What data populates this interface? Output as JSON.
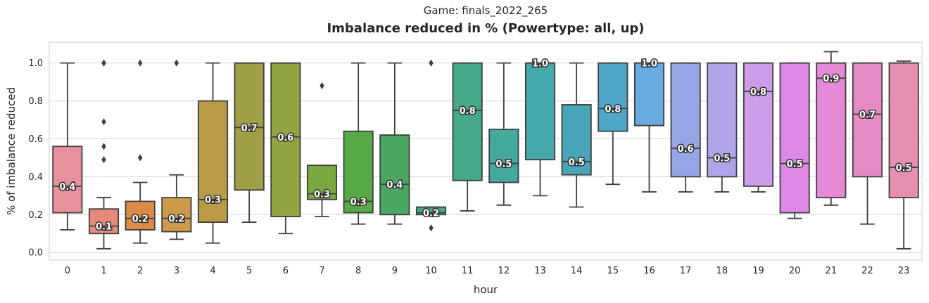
{
  "suptitle": "Game: finals_2022_265",
  "chart_data": {
    "type": "box",
    "title": "Imbalance reduced in % (Powertype: all, up)",
    "xlabel": "hour",
    "ylabel": "% of imbalance reduced",
    "ylim": [
      -0.04,
      1.11
    ],
    "yticks": [
      "0.0",
      "0.2",
      "0.4",
      "0.6",
      "0.8",
      "1.0"
    ],
    "grid": true,
    "categories": [
      "0",
      "1",
      "2",
      "3",
      "4",
      "5",
      "6",
      "7",
      "8",
      "9",
      "10",
      "11",
      "12",
      "13",
      "14",
      "15",
      "16",
      "17",
      "18",
      "19",
      "20",
      "21",
      "22",
      "23"
    ],
    "boxes": [
      {
        "hour": "0",
        "whisker_low": 0.12,
        "q1": 0.21,
        "median": 0.35,
        "q3": 0.56,
        "whisker_high": 1.0,
        "outliers": [],
        "label": "0.4",
        "color": "#e8919c"
      },
      {
        "hour": "1",
        "whisker_low": 0.02,
        "q1": 0.1,
        "median": 0.14,
        "q3": 0.23,
        "whisker_high": 0.29,
        "outliers": [
          0.49,
          0.56,
          0.69,
          1.0,
          1.0
        ],
        "label": "0.1",
        "color": "#e58a7c"
      },
      {
        "hour": "2",
        "whisker_low": 0.05,
        "q1": 0.12,
        "median": 0.18,
        "q3": 0.27,
        "whisker_high": 0.37,
        "outliers": [
          0.5,
          1.0
        ],
        "label": "0.2",
        "color": "#de8b48"
      },
      {
        "hour": "3",
        "whisker_low": 0.07,
        "q1": 0.11,
        "median": 0.18,
        "q3": 0.29,
        "whisker_high": 0.41,
        "outliers": [
          1.0
        ],
        "label": "0.2",
        "color": "#cd9a4c"
      },
      {
        "hour": "4",
        "whisker_low": 0.05,
        "q1": 0.16,
        "median": 0.28,
        "q3": 0.8,
        "whisker_high": 1.0,
        "outliers": [],
        "label": "0.3",
        "color": "#b99a46"
      },
      {
        "hour": "5",
        "whisker_low": 0.16,
        "q1": 0.33,
        "median": 0.66,
        "q3": 1.0,
        "whisker_high": 1.0,
        "outliers": [],
        "label": "0.7",
        "color": "#a09f46"
      },
      {
        "hour": "6",
        "whisker_low": 0.1,
        "q1": 0.19,
        "median": 0.61,
        "q3": 1.0,
        "whisker_high": 1.0,
        "outliers": [],
        "label": "0.6",
        "color": "#90a441"
      },
      {
        "hour": "7",
        "whisker_low": 0.19,
        "q1": 0.28,
        "median": 0.31,
        "q3": 0.46,
        "whisker_high": 0.46,
        "outliers": [
          0.88
        ],
        "label": "0.3",
        "color": "#78a83f"
      },
      {
        "hour": "8",
        "whisker_low": 0.15,
        "q1": 0.21,
        "median": 0.27,
        "q3": 0.64,
        "whisker_high": 1.0,
        "outliers": [],
        "label": "0.3",
        "color": "#56a946"
      },
      {
        "hour": "9",
        "whisker_low": 0.15,
        "q1": 0.2,
        "median": 0.36,
        "q3": 0.62,
        "whisker_high": 1.0,
        "outliers": [],
        "label": "0.4",
        "color": "#4aa763"
      },
      {
        "hour": "10",
        "whisker_low": 0.2,
        "q1": 0.2,
        "median": 0.21,
        "q3": 0.24,
        "whisker_high": 0.24,
        "outliers": [
          0.13,
          1.0
        ],
        "label": "0.2",
        "color": "#45a77a"
      },
      {
        "hour": "11",
        "whisker_low": 0.22,
        "q1": 0.38,
        "median": 0.75,
        "q3": 1.0,
        "whisker_high": 1.0,
        "outliers": [],
        "label": "0.8",
        "color": "#44a98b"
      },
      {
        "hour": "12",
        "whisker_low": 0.25,
        "q1": 0.37,
        "median": 0.47,
        "q3": 0.65,
        "whisker_high": 1.0,
        "outliers": [],
        "label": "0.5",
        "color": "#45a89c"
      },
      {
        "hour": "13",
        "whisker_low": 0.3,
        "q1": 0.49,
        "median": 1.0,
        "q3": 1.0,
        "whisker_high": 1.0,
        "outliers": [],
        "label": "1.0",
        "color": "#46a8ab"
      },
      {
        "hour": "14",
        "whisker_low": 0.24,
        "q1": 0.41,
        "median": 0.48,
        "q3": 0.78,
        "whisker_high": 1.0,
        "outliers": [],
        "label": "0.5",
        "color": "#49a6b8"
      },
      {
        "hour": "15",
        "whisker_low": 0.36,
        "q1": 0.64,
        "median": 0.76,
        "q3": 1.0,
        "whisker_high": 1.0,
        "outliers": [],
        "label": "0.8",
        "color": "#4ea6c9"
      },
      {
        "hour": "16",
        "whisker_low": 0.32,
        "q1": 0.67,
        "median": 1.0,
        "q3": 1.0,
        "whisker_high": 1.0,
        "outliers": [],
        "label": "1.0",
        "color": "#69aadf"
      },
      {
        "hour": "17",
        "whisker_low": 0.32,
        "q1": 0.4,
        "median": 0.55,
        "q3": 1.0,
        "whisker_high": 1.0,
        "outliers": [],
        "label": "0.6",
        "color": "#97a5e6"
      },
      {
        "hour": "18",
        "whisker_low": 0.32,
        "q1": 0.4,
        "median": 0.5,
        "q3": 1.0,
        "whisker_high": 1.0,
        "outliers": [],
        "label": "0.5",
        "color": "#b2a3e8"
      },
      {
        "hour": "19",
        "whisker_low": 0.32,
        "q1": 0.35,
        "median": 0.85,
        "q3": 1.0,
        "whisker_high": 1.0,
        "outliers": [],
        "label": "0.8",
        "color": "#cc9de8"
      },
      {
        "hour": "20",
        "whisker_low": 0.18,
        "q1": 0.21,
        "median": 0.47,
        "q3": 1.0,
        "whisker_high": 1.0,
        "outliers": [],
        "label": "0.5",
        "color": "#dd88e6"
      },
      {
        "hour": "21",
        "whisker_low": 0.25,
        "q1": 0.29,
        "median": 0.92,
        "q3": 1.0,
        "whisker_high": 1.06,
        "outliers": [],
        "label": "0.9",
        "color": "#e589d6"
      },
      {
        "hour": "22",
        "whisker_low": 0.15,
        "q1": 0.4,
        "median": 0.73,
        "q3": 1.0,
        "whisker_high": 1.0,
        "outliers": [],
        "label": "0.7",
        "color": "#e68ac4"
      },
      {
        "hour": "23",
        "whisker_low": 0.02,
        "q1": 0.29,
        "median": 0.45,
        "q3": 1.0,
        "whisker_high": 1.01,
        "outliers": [],
        "label": "0.5",
        "color": "#e68fb3"
      }
    ]
  }
}
